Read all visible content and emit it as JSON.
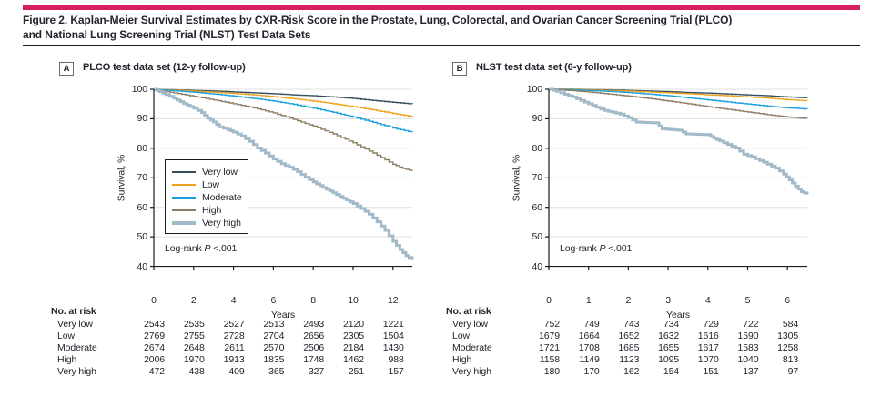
{
  "figure": {
    "title_line1": "Figure 2. Kaplan-Meier Survival Estimates by CXR-Risk Score in the Prostate, Lung, Colorectal, and Ovarian Cancer Screening Trial (PLCO)",
    "title_line2": "and National Lung Screening Trial (NLST) Test Data Sets",
    "accent_color": "#d71e63",
    "text_color": "#23242c"
  },
  "colors": {
    "very_low": "#34505f",
    "low": "#efa21f",
    "moderate": "#189fdd",
    "high": "#8d7c63",
    "very_high": "#a2bac7",
    "grid": "#e0e0e0",
    "axis": "#1a1a1a"
  },
  "chart_data": [
    {
      "panel_letter": "A",
      "title": "PLCO test data set (12-y follow-up)",
      "type": "line",
      "step": true,
      "xlabel": "Years",
      "ylabel": "Survival, %",
      "xlim": [
        0,
        12.97
      ],
      "ylim": [
        40,
        100
      ],
      "xticks": [
        0,
        2,
        4,
        6,
        8,
        10,
        12
      ],
      "yticks": [
        40,
        50,
        60,
        70,
        80,
        90,
        100
      ],
      "grid": "horizontal",
      "legend_visible": true,
      "legend_position": "inside-left",
      "annotation": {
        "pre": "Log-rank",
        "italic": "P",
        "post": "<.001"
      },
      "series": [
        {
          "name": "Very low",
          "key": "very_low",
          "points": [
            [
              0,
              100
            ],
            [
              0.5,
              99.9
            ],
            [
              1,
              99.8
            ],
            [
              2,
              99.6
            ],
            [
              3,
              99.4
            ],
            [
              4,
              99.1
            ],
            [
              5,
              98.8
            ],
            [
              6,
              98.5
            ],
            [
              7,
              98.1
            ],
            [
              8,
              97.8
            ],
            [
              9,
              97.4
            ],
            [
              10,
              96.9
            ],
            [
              11,
              96.2
            ],
            [
              12,
              95.6
            ],
            [
              12.97,
              95.0
            ]
          ]
        },
        {
          "name": "Low",
          "key": "low",
          "points": [
            [
              0,
              100
            ],
            [
              0.5,
              99.9
            ],
            [
              1,
              99.7
            ],
            [
              2,
              99.4
            ],
            [
              3,
              99.0
            ],
            [
              4,
              98.6
            ],
            [
              5,
              98.1
            ],
            [
              6,
              97.5
            ],
            [
              7,
              96.8
            ],
            [
              8,
              96.0
            ],
            [
              9,
              95.1
            ],
            [
              10,
              94.1
            ],
            [
              11,
              93.0
            ],
            [
              12,
              91.8
            ],
            [
              12.97,
              90.7
            ]
          ]
        },
        {
          "name": "Moderate",
          "key": "moderate",
          "points": [
            [
              0,
              100
            ],
            [
              0.5,
              99.8
            ],
            [
              1,
              99.5
            ],
            [
              2,
              99.0
            ],
            [
              3,
              98.4
            ],
            [
              4,
              97.7
            ],
            [
              5,
              96.9
            ],
            [
              6,
              96.0
            ],
            [
              7,
              94.9
            ],
            [
              8,
              93.6
            ],
            [
              9,
              92.2
            ],
            [
              10,
              90.6
            ],
            [
              11,
              88.8
            ],
            [
              12,
              86.9
            ],
            [
              12.97,
              85.4
            ]
          ]
        },
        {
          "name": "High",
          "key": "high",
          "points": [
            [
              0,
              100
            ],
            [
              0.5,
              99.4
            ],
            [
              1,
              98.8
            ],
            [
              2,
              97.6
            ],
            [
              3,
              96.4
            ],
            [
              4,
              95.1
            ],
            [
              5,
              93.7
            ],
            [
              6,
              92.0
            ],
            [
              7,
              89.8
            ],
            [
              8,
              87.5
            ],
            [
              9,
              84.9
            ],
            [
              10,
              81.9
            ],
            [
              11,
              78.4
            ],
            [
              12,
              74.6
            ],
            [
              12.5,
              73.2
            ],
            [
              12.97,
              72.3
            ]
          ]
        },
        {
          "name": "Very high",
          "key": "very_high",
          "points": [
            [
              0,
              100
            ],
            [
              0.3,
              99.2
            ],
            [
              0.6,
              98.2
            ],
            [
              1,
              97.0
            ],
            [
              1.5,
              95.2
            ],
            [
              2,
              93.6
            ],
            [
              2.4,
              92.1
            ],
            [
              2.7,
              90.2
            ],
            [
              3,
              88.9
            ],
            [
              3.3,
              87.3
            ],
            [
              3.7,
              86.4
            ],
            [
              4,
              85.5
            ],
            [
              4.4,
              84.2
            ],
            [
              4.8,
              82.4
            ],
            [
              5.2,
              80.1
            ],
            [
              5.6,
              78.4
            ],
            [
              6,
              76.4
            ],
            [
              6.4,
              74.8
            ],
            [
              6.8,
              73.6
            ],
            [
              7.2,
              72.1
            ],
            [
              7.6,
              70.2
            ],
            [
              8,
              68.6
            ],
            [
              8.5,
              66.7
            ],
            [
              9,
              64.9
            ],
            [
              9.5,
              63.1
            ],
            [
              10,
              61.3
            ],
            [
              10.4,
              59.6
            ],
            [
              10.8,
              57.7
            ],
            [
              11.2,
              55.1
            ],
            [
              11.6,
              52.2
            ],
            [
              12,
              48.5
            ],
            [
              12.35,
              45.7
            ],
            [
              12.65,
              43.6
            ],
            [
              12.97,
              42.4
            ]
          ]
        }
      ],
      "no_at_risk": {
        "label": "No. at risk",
        "x": [
          0,
          2,
          4,
          6,
          8,
          10,
          12
        ],
        "rows": [
          {
            "name": "Very low",
            "values": [
              2543,
              2535,
              2527,
              2513,
              2493,
              2120,
              1221
            ]
          },
          {
            "name": "Low",
            "values": [
              2769,
              2755,
              2728,
              2704,
              2656,
              2305,
              1504
            ]
          },
          {
            "name": "Moderate",
            "values": [
              2674,
              2648,
              2611,
              2570,
              2506,
              2184,
              1430
            ]
          },
          {
            "name": "High",
            "values": [
              2006,
              1970,
              1913,
              1835,
              1748,
              1462,
              988
            ]
          },
          {
            "name": "Very high",
            "values": [
              472,
              438,
              409,
              365,
              327,
              251,
              157
            ]
          }
        ]
      }
    },
    {
      "panel_letter": "B",
      "title": "NLST test data set (6-y follow-up)",
      "type": "line",
      "step": true,
      "xlabel": "Years",
      "ylabel": "Survival, %",
      "xlim": [
        0,
        6.5
      ],
      "ylim": [
        40,
        100
      ],
      "xticks": [
        0,
        1,
        2,
        3,
        4,
        5,
        6
      ],
      "yticks": [
        40,
        50,
        60,
        70,
        80,
        90,
        100
      ],
      "grid": "horizontal",
      "legend_visible": false,
      "legend_position": null,
      "annotation": {
        "pre": "Log-rank",
        "italic": "P",
        "post": "<.001"
      },
      "series": [
        {
          "name": "Very low",
          "key": "very_low",
          "points": [
            [
              0,
              100
            ],
            [
              0.5,
              100
            ],
            [
              1,
              99.9
            ],
            [
              1.5,
              99.8
            ],
            [
              2,
              99.6
            ],
            [
              2.5,
              99.4
            ],
            [
              3,
              99.2
            ],
            [
              3.5,
              98.9
            ],
            [
              4,
              98.7
            ],
            [
              4.5,
              98.4
            ],
            [
              5,
              98.1
            ],
            [
              5.5,
              97.8
            ],
            [
              6,
              97.4
            ],
            [
              6.5,
              97.1
            ]
          ]
        },
        {
          "name": "Low",
          "key": "low",
          "points": [
            [
              0,
              100
            ],
            [
              0.5,
              99.9
            ],
            [
              1,
              99.8
            ],
            [
              1.5,
              99.6
            ],
            [
              2,
              99.4
            ],
            [
              2.5,
              99.1
            ],
            [
              3,
              98.8
            ],
            [
              3.5,
              98.5
            ],
            [
              4,
              98.1
            ],
            [
              4.5,
              97.8
            ],
            [
              5,
              97.4
            ],
            [
              5.5,
              97.0
            ],
            [
              6,
              96.5
            ],
            [
              6.5,
              96.1
            ]
          ]
        },
        {
          "name": "Moderate",
          "key": "moderate",
          "points": [
            [
              0,
              100
            ],
            [
              0.5,
              99.8
            ],
            [
              1,
              99.6
            ],
            [
              1.5,
              99.3
            ],
            [
              2,
              98.9
            ],
            [
              2.5,
              98.4
            ],
            [
              3,
              97.8
            ],
            [
              3.5,
              97.1
            ],
            [
              4,
              96.4
            ],
            [
              4.5,
              95.7
            ],
            [
              5,
              95.0
            ],
            [
              5.5,
              94.3
            ],
            [
              6,
              93.7
            ],
            [
              6.5,
              93.3
            ]
          ]
        },
        {
          "name": "High",
          "key": "high",
          "points": [
            [
              0,
              100
            ],
            [
              0.5,
              99.6
            ],
            [
              1,
              99.1
            ],
            [
              1.5,
              98.4
            ],
            [
              2,
              97.7
            ],
            [
              2.5,
              96.9
            ],
            [
              3,
              96.0
            ],
            [
              3.5,
              95.1
            ],
            [
              4,
              94.1
            ],
            [
              4.5,
              93.2
            ],
            [
              5,
              92.3
            ],
            [
              5.5,
              91.4
            ],
            [
              6,
              90.6
            ],
            [
              6.5,
              90.1
            ]
          ]
        },
        {
          "name": "Very high",
          "key": "very_high",
          "points": [
            [
              0,
              100
            ],
            [
              0.2,
              99.3
            ],
            [
              0.4,
              98.3
            ],
            [
              0.6,
              97.4
            ],
            [
              0.8,
              96.2
            ],
            [
              1,
              95.1
            ],
            [
              1.2,
              93.9
            ],
            [
              1.4,
              92.8
            ],
            [
              1.6,
              92.2
            ],
            [
              1.8,
              91.6
            ],
            [
              2,
              90.4
            ],
            [
              2.2,
              88.9
            ],
            [
              2.7,
              88.6
            ],
            [
              2.85,
              86.6
            ],
            [
              3.3,
              86.1
            ],
            [
              3.45,
              84.9
            ],
            [
              4,
              84.6
            ],
            [
              4.15,
              83.4
            ],
            [
              4.3,
              82.5
            ],
            [
              4.5,
              81.3
            ],
            [
              4.7,
              80.1
            ],
            [
              4.9,
              78.0
            ],
            [
              5.1,
              77.1
            ],
            [
              5.4,
              75.3
            ],
            [
              5.7,
              73.3
            ],
            [
              5.9,
              71.3
            ],
            [
              6.05,
              69.3
            ],
            [
              6.2,
              67.2
            ],
            [
              6.35,
              65.3
            ],
            [
              6.5,
              64.4
            ]
          ]
        }
      ],
      "no_at_risk": {
        "label": "No. at risk",
        "x": [
          0,
          1,
          2,
          3,
          4,
          5,
          6
        ],
        "rows": [
          {
            "name": "Very low",
            "values": [
              752,
              749,
              743,
              734,
              729,
              722,
              584
            ]
          },
          {
            "name": "Low",
            "values": [
              1679,
              1664,
              1652,
              1632,
              1616,
              1590,
              1305
            ]
          },
          {
            "name": "Moderate",
            "values": [
              1721,
              1708,
              1685,
              1655,
              1617,
              1583,
              1258
            ]
          },
          {
            "name": "High",
            "values": [
              1158,
              1149,
              1123,
              1095,
              1070,
              1040,
              813
            ]
          },
          {
            "name": "Very high",
            "values": [
              180,
              170,
              162,
              154,
              151,
              137,
              97
            ]
          }
        ]
      }
    }
  ]
}
